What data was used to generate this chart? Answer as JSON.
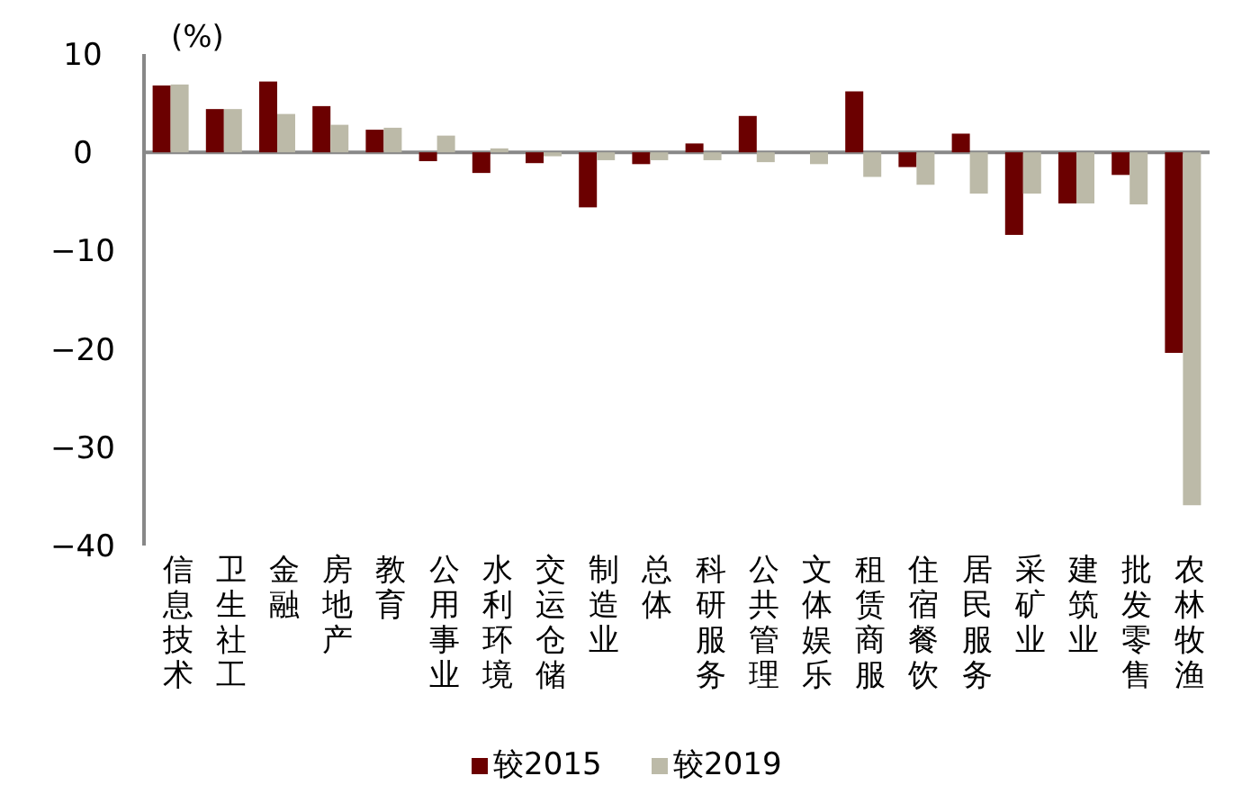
{
  "chart_data": {
    "type": "bar",
    "ylabel": "(%)",
    "categories": [
      "信息技术",
      "卫生社工",
      "金融",
      "房地产",
      "教育",
      "公用事业",
      "水利环境",
      "交运仓储",
      "制造业",
      "总体",
      "科研服务",
      "公共管理",
      "文体娱乐",
      "租赁商服",
      "住宿餐饮",
      "居民服务",
      "采矿业",
      "建筑业",
      "批发零售",
      "农林牧渔"
    ],
    "series": [
      {
        "name": "较2015",
        "color": "#6b0000",
        "values": [
          6.8,
          4.4,
          7.2,
          4.7,
          2.3,
          -0.9,
          -2.1,
          -1.1,
          -5.6,
          -1.2,
          0.9,
          3.7,
          0,
          6.2,
          -1.5,
          1.9,
          -8.4,
          -5.2,
          -2.3,
          -20.4
        ]
      },
      {
        "name": "较2019",
        "color": "#bcbaa8",
        "values": [
          6.9,
          4.4,
          3.9,
          2.8,
          2.5,
          1.7,
          0.4,
          -0.4,
          -0.8,
          -0.8,
          -0.8,
          -1.0,
          -1.2,
          -2.5,
          -3.3,
          -4.2,
          -4.2,
          -5.2,
          -5.3,
          -35.9
        ]
      }
    ],
    "ylim": [
      -40,
      10
    ],
    "yticks": [
      -40,
      -30,
      -20,
      -10,
      0,
      10
    ],
    "legend": "bottom"
  }
}
